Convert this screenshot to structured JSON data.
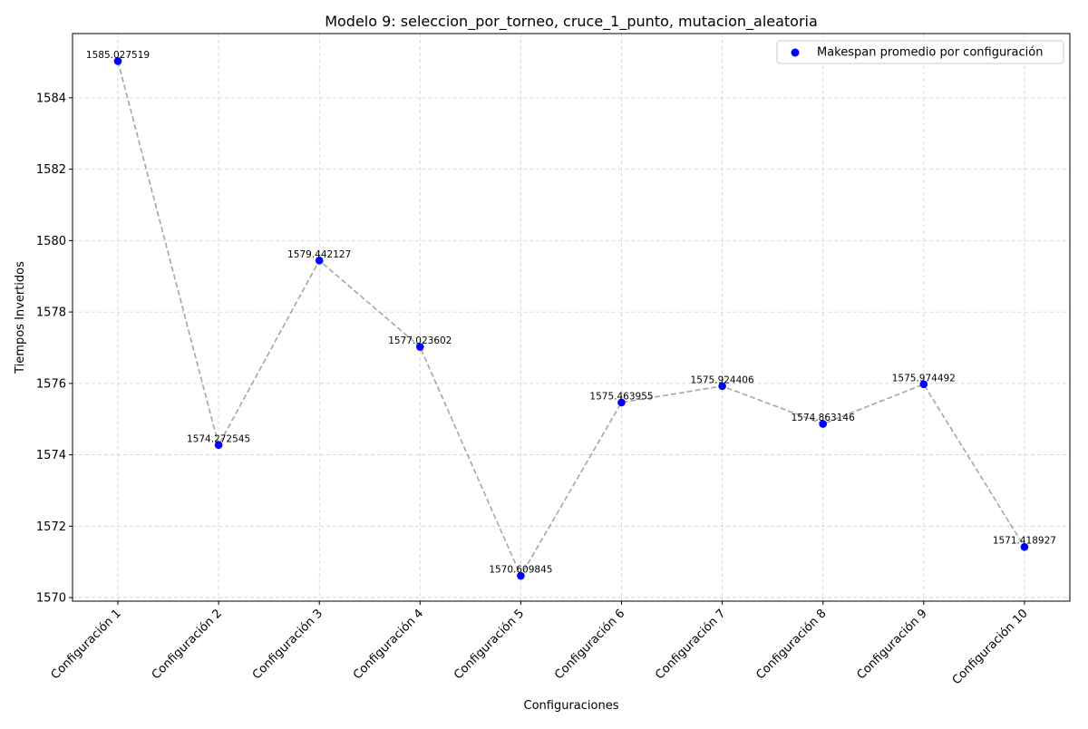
{
  "chart_data": {
    "type": "scatter",
    "title": "Modelo 9: seleccion_por_torneo, cruce_1_punto, mutacion_aleatoria",
    "xlabel": "Configuraciones",
    "ylabel": "Tiempos Invertidos",
    "categories": [
      "Configuración 1",
      "Configuración 2",
      "Configuración 3",
      "Configuración 4",
      "Configuración 5",
      "Configuración 6",
      "Configuración 7",
      "Configuración 8",
      "Configuración 9",
      "Configuración 10"
    ],
    "series": [
      {
        "name": "Makespan promedio por configuración",
        "values": [
          1585.027519,
          1574.272545,
          1579.442127,
          1577.023602,
          1570.609845,
          1575.463955,
          1575.924406,
          1574.863146,
          1575.974492,
          1571.418927
        ],
        "labels": [
          "1585.027519",
          "1574.272545",
          "1579.442127",
          "1577.023602",
          "1570.609845",
          "1575.463955",
          "1575.924406",
          "1574.863146",
          "1575.974492",
          "1571.418927"
        ],
        "color": "#0000ff",
        "connector": "dashed",
        "connector_color": "#a6a6a6"
      }
    ],
    "ylim": [
      1569.9,
      1585.8
    ],
    "yticks": [
      1570,
      1572,
      1574,
      1576,
      1578,
      1580,
      1582,
      1584
    ],
    "grid": true,
    "legend": "top-right"
  }
}
